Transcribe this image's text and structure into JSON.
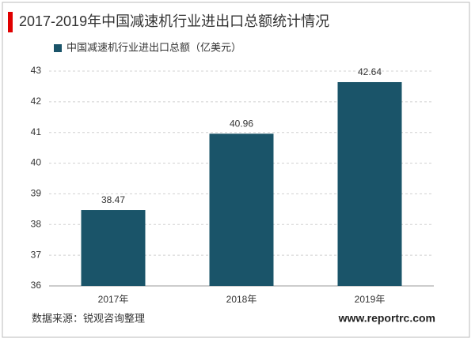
{
  "chart_data": {
    "type": "bar",
    "title": "2017-2019年中国减速机行业进出口总额统计情况",
    "legend": "中国减速机行业进出口总额（亿美元）",
    "categories": [
      "2017年",
      "2018年",
      "2019年"
    ],
    "values": [
      38.47,
      40.96,
      42.64
    ],
    "color": "#1a5469",
    "ylim": [
      36,
      43
    ],
    "yticks": [
      36,
      37,
      38,
      39,
      40,
      41,
      42,
      43
    ],
    "grid": true,
    "source": "数据来源：锐观咨询整理",
    "website": "www.reportrc.com"
  }
}
